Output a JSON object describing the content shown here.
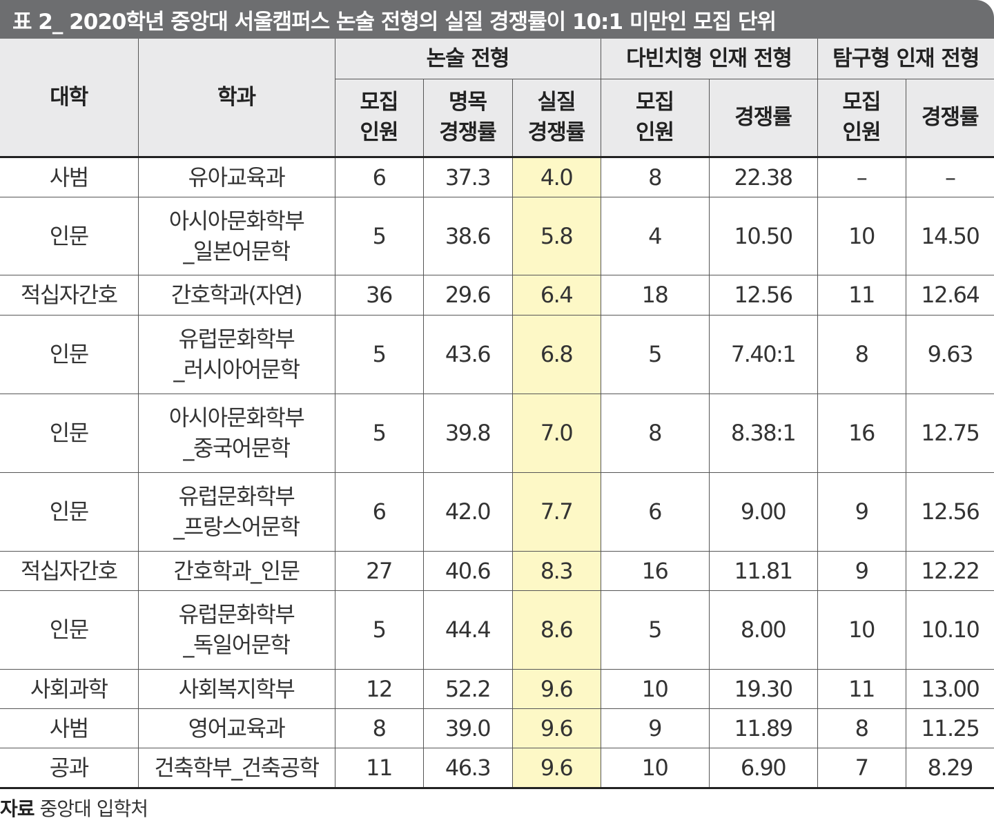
{
  "title": "표 2_ 2020학년 중앙대 서울캠퍼스 논술 전형의 실질 경쟁률이 10:1 미만인 모집 단위",
  "headers": {
    "university": "대학",
    "department": "학과",
    "essay_group": "논술 전형",
    "talent_group": "다빈치형 인재 전형",
    "explore_group": "탐구형 인재 전형",
    "essay_recruit": [
      "모집",
      "인원"
    ],
    "essay_nominal": [
      "명목",
      "경쟁률"
    ],
    "essay_actual": [
      "실질",
      "경쟁률"
    ],
    "talent_recruit": [
      "모집",
      "인원"
    ],
    "talent_rate": "경쟁률",
    "explore_recruit": [
      "모집",
      "인원"
    ],
    "explore_rate": "경쟁률"
  },
  "rows": [
    {
      "college": "사범",
      "dept": [
        "유아교육과"
      ],
      "essay_recruit": "6",
      "essay_nominal": "37.3",
      "essay_actual": "4.0",
      "talent_recruit": "8",
      "talent_rate": "22.38",
      "explore_recruit": "–",
      "explore_rate": "–"
    },
    {
      "college": "인문",
      "dept": [
        "아시아문화학부",
        "_일본어문학"
      ],
      "essay_recruit": "5",
      "essay_nominal": "38.6",
      "essay_actual": "5.8",
      "talent_recruit": "4",
      "talent_rate": "10.50",
      "explore_recruit": "10",
      "explore_rate": "14.50"
    },
    {
      "college": "적십자간호",
      "dept": [
        "간호학과(자연)"
      ],
      "essay_recruit": "36",
      "essay_nominal": "29.6",
      "essay_actual": "6.4",
      "talent_recruit": "18",
      "talent_rate": "12.56",
      "explore_recruit": "11",
      "explore_rate": "12.64"
    },
    {
      "college": "인문",
      "dept": [
        "유럽문화학부",
        "_러시아어문학"
      ],
      "essay_recruit": "5",
      "essay_nominal": "43.6",
      "essay_actual": "6.8",
      "talent_recruit": "5",
      "talent_rate": "7.40:1",
      "explore_recruit": "8",
      "explore_rate": "9.63"
    },
    {
      "college": "인문",
      "dept": [
        "아시아문화학부",
        "_중국어문학"
      ],
      "essay_recruit": "5",
      "essay_nominal": "39.8",
      "essay_actual": "7.0",
      "talent_recruit": "8",
      "talent_rate": "8.38:1",
      "explore_recruit": "16",
      "explore_rate": "12.75"
    },
    {
      "college": "인문",
      "dept": [
        "유럽문화학부",
        "_프랑스어문학"
      ],
      "essay_recruit": "6",
      "essay_nominal": "42.0",
      "essay_actual": "7.7",
      "talent_recruit": "6",
      "talent_rate": "9.00",
      "explore_recruit": "9",
      "explore_rate": "12.56"
    },
    {
      "college": "적십자간호",
      "dept": [
        "간호학과_인문"
      ],
      "essay_recruit": "27",
      "essay_nominal": "40.6",
      "essay_actual": "8.3",
      "talent_recruit": "16",
      "talent_rate": "11.81",
      "explore_recruit": "9",
      "explore_rate": "12.22"
    },
    {
      "college": "인문",
      "dept": [
        "유럽문화학부",
        "_독일어문학"
      ],
      "essay_recruit": "5",
      "essay_nominal": "44.4",
      "essay_actual": "8.6",
      "talent_recruit": "5",
      "talent_rate": "8.00",
      "explore_recruit": "10",
      "explore_rate": "10.10"
    },
    {
      "college": "사회과학",
      "dept": [
        "사회복지학부"
      ],
      "essay_recruit": "12",
      "essay_nominal": "52.2",
      "essay_actual": "9.6",
      "talent_recruit": "10",
      "talent_rate": "19.30",
      "explore_recruit": "11",
      "explore_rate": "13.00"
    },
    {
      "college": "사범",
      "dept": [
        "영어교육과"
      ],
      "essay_recruit": "8",
      "essay_nominal": "39.0",
      "essay_actual": "9.6",
      "talent_recruit": "9",
      "talent_rate": "11.89",
      "explore_recruit": "8",
      "explore_rate": "11.25"
    },
    {
      "college": "공과",
      "dept": [
        "건축학부_건축공학"
      ],
      "essay_recruit": "11",
      "essay_nominal": "46.3",
      "essay_actual": "9.6",
      "talent_recruit": "10",
      "talent_rate": "6.90",
      "explore_recruit": "7",
      "explore_rate": "8.29"
    }
  ],
  "source": {
    "label": "자료",
    "text": "중앙대 입학처"
  },
  "colors": {
    "title_bar": "#6d6e70",
    "header_bg": "#eaeaeb",
    "highlight": "#fdf8c6"
  }
}
